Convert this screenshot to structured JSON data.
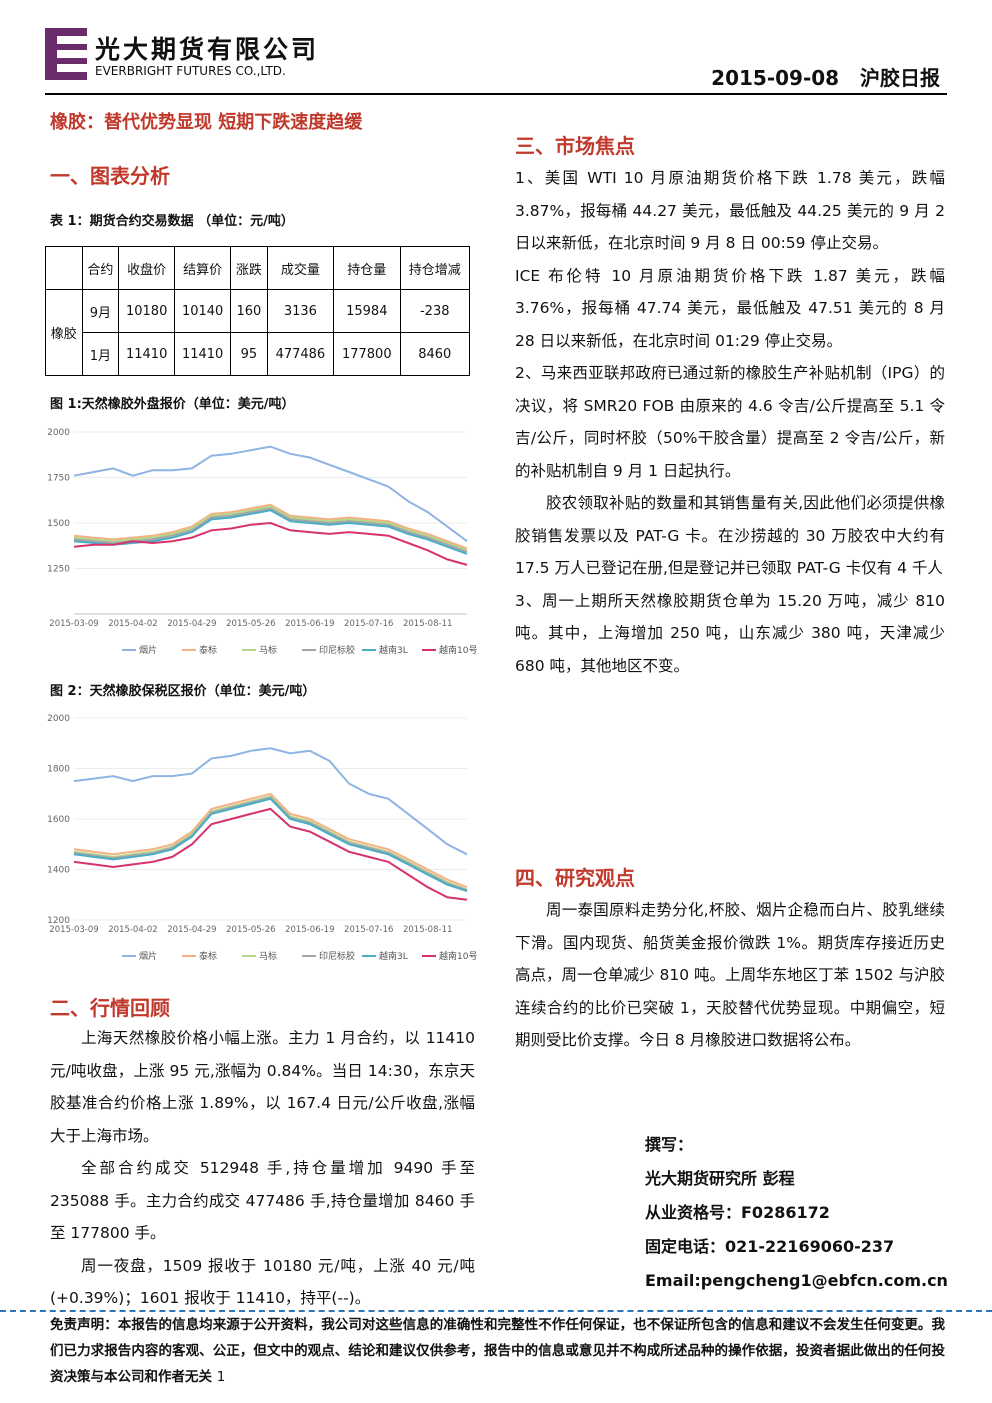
{
  "header": {
    "company": "光大期货有限公司",
    "company_en": "EVERBRIGHT FUTURES CO.,LTD.",
    "date": "2015-09-08",
    "report": "沪胶日报"
  },
  "headline": "橡胶：替代优势显现 短期下跌速度趋缓",
  "section1": "一、图表分析",
  "table": {
    "caption": "表 1：期货合约交易数据 （单位：元/吨）",
    "header": [
      "合约",
      "收盘价",
      "结算价",
      "涨跌",
      "成交量",
      "持仓量",
      "持仓增减"
    ],
    "group": "橡胶",
    "rows": [
      [
        "9月",
        10180,
        10140,
        160,
        3136,
        15984,
        -238
      ],
      [
        "1月",
        11410,
        11410,
        95,
        477486,
        177800,
        8460
      ]
    ]
  },
  "chart_data": [
    {
      "type": "line",
      "title": "图 1:天然橡胶外盘报价（单位：美元/吨）",
      "categories": [
        "2015-03-09",
        null,
        null,
        "2015-04-02",
        null,
        null,
        "2015-04-29",
        null,
        null,
        "2015-05-26",
        null,
        null,
        "2015-06-19",
        null,
        null,
        "2015-07-16",
        null,
        null,
        "2015-08-11",
        null,
        null
      ],
      "ylim": [
        1000,
        2000
      ],
      "yticks": [
        1250,
        1500,
        1750,
        2000
      ],
      "grid": true,
      "series": [
        {
          "name": "烟片",
          "color": "#8eb4e3",
          "values": [
            1760,
            1780,
            1800,
            1760,
            1790,
            1790,
            1800,
            1870,
            1880,
            1900,
            1920,
            1880,
            1860,
            1820,
            1780,
            1740,
            1700,
            1620,
            1560,
            1480,
            1400
          ]
        },
        {
          "name": "泰标",
          "color": "#f5b183",
          "values": [
            1430,
            1420,
            1410,
            1420,
            1430,
            1450,
            1480,
            1550,
            1560,
            1580,
            1600,
            1540,
            1530,
            1520,
            1530,
            1520,
            1510,
            1470,
            1440,
            1400,
            1360
          ]
        },
        {
          "name": "马标",
          "color": "#b3d78b",
          "values": [
            1420,
            1410,
            1400,
            1410,
            1420,
            1440,
            1470,
            1540,
            1550,
            1570,
            1590,
            1530,
            1520,
            1510,
            1520,
            1510,
            1500,
            1460,
            1430,
            1390,
            1350
          ]
        },
        {
          "name": "印尼标胶",
          "color": "#a6a6a6",
          "values": [
            1410,
            1400,
            1390,
            1400,
            1410,
            1430,
            1460,
            1530,
            1540,
            1560,
            1580,
            1520,
            1510,
            1500,
            1510,
            1500,
            1490,
            1450,
            1420,
            1380,
            1340
          ]
        },
        {
          "name": "越南3L",
          "color": "#4bacc6",
          "values": [
            1400,
            1390,
            1380,
            1390,
            1400,
            1420,
            1450,
            1520,
            1530,
            1550,
            1570,
            1510,
            1500,
            1490,
            1500,
            1490,
            1480,
            1440,
            1410,
            1370,
            1330
          ]
        },
        {
          "name": "越南10号",
          "color": "#d6336c",
          "values": [
            1370,
            1380,
            1380,
            1400,
            1390,
            1400,
            1420,
            1460,
            1470,
            1490,
            1500,
            1460,
            1450,
            1440,
            1450,
            1440,
            1430,
            1390,
            1350,
            1300,
            1270
          ]
        }
      ]
    },
    {
      "type": "line",
      "title": "图 2：天然橡胶保税区报价（单位：美元/吨）",
      "categories": [
        "2015-03-09",
        null,
        null,
        "2015-04-02",
        null,
        null,
        "2015-04-29",
        null,
        null,
        "2015-05-26",
        null,
        null,
        "2015-06-19",
        null,
        null,
        "2015-07-16",
        null,
        null,
        "2015-08-11",
        null,
        null
      ],
      "ylim": [
        1200,
        2000
      ],
      "yticks": [
        1200,
        1400,
        1600,
        1800,
        2000
      ],
      "grid": true,
      "series": [
        {
          "name": "烟片",
          "color": "#8eb4e3",
          "values": [
            1750,
            1760,
            1770,
            1750,
            1770,
            1770,
            1780,
            1840,
            1850,
            1870,
            1880,
            1860,
            1870,
            1830,
            1740,
            1700,
            1680,
            1620,
            1560,
            1500,
            1460
          ]
        },
        {
          "name": "泰标",
          "color": "#f5b183",
          "values": [
            1480,
            1470,
            1460,
            1470,
            1480,
            1500,
            1550,
            1640,
            1660,
            1680,
            1700,
            1620,
            1600,
            1560,
            1520,
            1500,
            1480,
            1440,
            1400,
            1360,
            1330
          ]
        },
        {
          "name": "马标",
          "color": "#b3d78b",
          "values": [
            1470,
            1460,
            1450,
            1460,
            1470,
            1490,
            1540,
            1630,
            1650,
            1670,
            1690,
            1610,
            1590,
            1550,
            1510,
            1490,
            1470,
            1430,
            1390,
            1350,
            1320
          ]
        },
        {
          "name": "印尼标胶",
          "color": "#a6a6a6",
          "values": [
            1465,
            1455,
            1445,
            1455,
            1465,
            1485,
            1535,
            1625,
            1645,
            1665,
            1685,
            1605,
            1585,
            1545,
            1505,
            1485,
            1465,
            1425,
            1385,
            1345,
            1318
          ]
        },
        {
          "name": "越南3L",
          "color": "#4bacc6",
          "values": [
            1460,
            1450,
            1440,
            1450,
            1460,
            1480,
            1530,
            1620,
            1640,
            1660,
            1680,
            1600,
            1580,
            1540,
            1500,
            1480,
            1460,
            1420,
            1380,
            1340,
            1315
          ]
        },
        {
          "name": "越南10号",
          "color": "#d6336c",
          "values": [
            1430,
            1420,
            1410,
            1420,
            1430,
            1450,
            1500,
            1580,
            1600,
            1620,
            1640,
            1570,
            1550,
            1510,
            1470,
            1450,
            1430,
            1380,
            1330,
            1290,
            1280
          ]
        }
      ]
    }
  ],
  "section2": "二、行情回顾",
  "review": [
    "上海天然橡胶价格小幅上涨。主力 1 月合约，以 11410 元/吨收盘，上涨 95 元,涨幅为 0.84%。当日 14:30，东京天胶基准合约价格上涨 1.89%，以 167.4 日元/公斤收盘,涨幅大于上海市场。",
    "全部合约成交 512948 手,持仓量增加 9490 手至 235088 手。主力合约成交 477486 手,持仓量增加 8460 手至 177800 手。",
    "周一夜盘，1509 报收于 10180 元/吨，上涨 40 元/吨(+0.39%)；1601 报收于 11410，持平(--)。"
  ],
  "section3": "三、市场焦点",
  "focus": [
    "1、美国 WTI 10 月原油期货价格下跌 1.78 美元，跌幅 3.87%，报每桶 44.27 美元，最低触及 44.25 美元的 9 月 2 日以来新低，在北京时间 9 月 8 日 00:59 停止交易。",
    "ICE 布伦特 10 月原油期货价格下跌 1.87 美元，跌幅 3.76%，报每桶 47.74 美元，最低触及 47.51 美元的 8 月 28 日以来新低，在北京时间 01:29 停止交易。",
    "2、马来西亚联邦政府已通过新的橡胶生产补贴机制（IPG）的决议，将 SMR20 FOB 由原来的 4.6 令吉/公斤提高至 5.1 令吉/公斤，同时杯胶（50%干胶含量）提高至 2 令吉/公斤，新的补贴机制自 9 月 1 日起执行。",
    "胶农领取补贴的数量和其销售量有关,因此他们必须提供橡胶销售发票以及 PAT-G 卡。在沙捞越的 30 万胶农中大约有 17.5 万人已登记在册,但是登记并已领取 PAT-G 卡仅有 4 千人",
    "3、周一上期所天然橡胶期货仓单为 15.20 万吨，减少 810 吨。其中，上海增加 250 吨，山东减少 380 吨，天津减少 680 吨，其他地区不变。"
  ],
  "section4": "四、研究观点",
  "view": "周一泰国原料走势分化,杯胶、烟片企稳而白片、胶乳继续下滑。国内现货、船货美金报价微跌 1%。期货库存接近历史高点，周一仓单减少 810 吨。上周华东地区丁苯 1502 与沪胶连续合约的比价已突破 1，天胶替代优势显现。中期偏空，短期则受比价支撑。今日 8 月橡胶进口数据将公布。",
  "author": [
    "撰写：",
    "光大期货研究所 彭程",
    "从业资格号：F0286172",
    "固定电话：021-22169060-237",
    "Email:pengcheng1@ebfcn.com.cn"
  ],
  "disclaimer": "免责声明：本报告的信息均来源于公开资料，我公司对这些信息的准确性和完整性不作任何保证，也不保证所包含的信息和建议不会发生任何变更。我们已力求报告内容的客观、公正，但文中的观点、结论和建议仅供参考，报告中的信息或意见并不构成所述品种的操作依据，投资者据此做出的任何投资决策与本公司和作者无关",
  "page": "1"
}
